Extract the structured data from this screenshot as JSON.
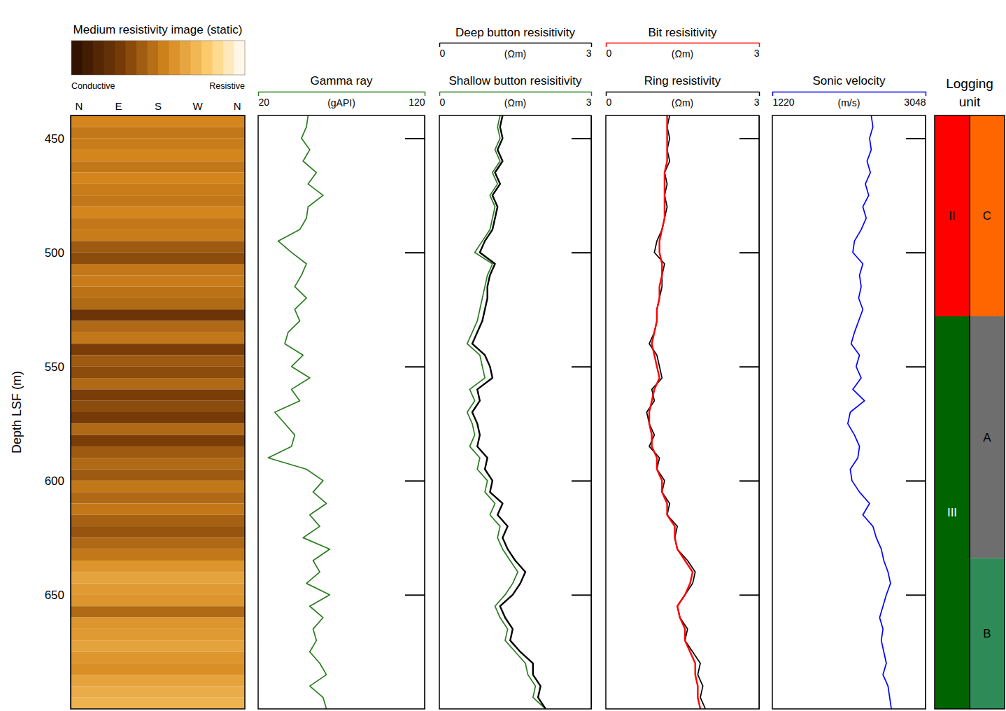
{
  "chart_data": {
    "type": "well_log",
    "ylabel": "Depth LSF (m)",
    "ylim": [
      440,
      700
    ],
    "yticks": [
      450,
      500,
      550,
      600,
      650
    ],
    "depth": [
      440,
      445,
      450,
      455,
      460,
      465,
      470,
      475,
      480,
      485,
      490,
      495,
      500,
      505,
      510,
      515,
      520,
      525,
      530,
      535,
      540,
      545,
      550,
      555,
      560,
      565,
      570,
      575,
      580,
      585,
      590,
      595,
      600,
      605,
      610,
      615,
      620,
      625,
      630,
      635,
      640,
      645,
      650,
      655,
      660,
      665,
      670,
      675,
      680,
      685,
      690,
      695,
      700
    ],
    "tracks": [
      {
        "type": "heatmap",
        "title": "Medium resistivity image (static)",
        "categories": [
          "N",
          "E",
          "S",
          "W",
          "N"
        ],
        "values": [
          0.55,
          0.5,
          0.52,
          0.55,
          0.5,
          0.55,
          0.52,
          0.5,
          0.55,
          0.5,
          0.52,
          0.4,
          0.35,
          0.5,
          0.52,
          0.48,
          0.45,
          0.25,
          0.45,
          0.5,
          0.3,
          0.4,
          0.35,
          0.45,
          0.3,
          0.35,
          0.28,
          0.45,
          0.3,
          0.4,
          0.45,
          0.4,
          0.5,
          0.45,
          0.5,
          0.42,
          0.38,
          0.45,
          0.5,
          0.6,
          0.65,
          0.62,
          0.6,
          0.45,
          0.6,
          0.62,
          0.65,
          0.6,
          0.58,
          0.65,
          0.68,
          0.7
        ],
        "colorbar_range": [
          0,
          1
        ],
        "colorbar_ticks": [
          {
            "value": 0,
            "label": "Conductive"
          },
          {
            "value": 1,
            "label": "Resistive"
          }
        ]
      },
      {
        "type": "line",
        "xlim": [
          20,
          120
        ],
        "xticks": [
          20,
          120
        ],
        "series": [
          {
            "name": "Gamma ray",
            "units": "(gAPI)",
            "color": "#2a7d1f",
            "values": [
              50,
              49,
              46,
              51,
              47,
              55,
              50,
              59,
              50,
              49,
              45,
              32,
              40,
              49,
              46,
              42,
              49,
              42,
              45,
              38,
              36,
              47,
              40,
              51,
              40,
              45,
              30,
              36,
              42,
              40,
              26,
              49,
              59,
              53,
              61,
              51,
              57,
              47,
              63,
              53,
              57,
              49,
              63,
              51,
              59,
              53,
              55,
              51,
              57,
              61,
              51,
              59,
              61
            ]
          }
        ]
      },
      {
        "type": "line",
        "xlim": [
          0,
          3
        ],
        "xticks": [
          0,
          3
        ],
        "series": [
          {
            "name": "Shallow button resisitivity",
            "units": "(Ωm)",
            "color": "#2a7d1f",
            "values": [
              1.2,
              1.15,
              1.2,
              1.1,
              1.2,
              1.05,
              1.15,
              1.0,
              1.1,
              1.05,
              1.0,
              0.85,
              0.7,
              1.05,
              0.95,
              0.9,
              0.85,
              0.8,
              0.75,
              0.65,
              0.55,
              0.8,
              0.85,
              0.9,
              0.6,
              0.7,
              0.55,
              0.65,
              0.7,
              0.6,
              0.8,
              0.75,
              0.95,
              0.9,
              1.1,
              1.0,
              1.2,
              1.15,
              1.25,
              1.4,
              1.55,
              1.45,
              1.3,
              1.1,
              1.2,
              1.35,
              1.3,
              1.5,
              1.7,
              1.75,
              1.9,
              1.85,
              2.1
            ]
          },
          {
            "name": "Deep button resisitivity",
            "units": "(Ωm)",
            "color": "#000000",
            "values": [
              1.25,
              1.2,
              1.25,
              1.15,
              1.25,
              1.1,
              1.2,
              1.05,
              1.15,
              1.1,
              1.05,
              0.9,
              0.8,
              1.1,
              1.0,
              0.95,
              0.95,
              0.9,
              0.85,
              0.75,
              0.65,
              0.9,
              1.0,
              1.05,
              0.75,
              0.8,
              0.65,
              0.75,
              0.8,
              0.75,
              0.95,
              0.9,
              1.05,
              1.0,
              1.25,
              1.15,
              1.35,
              1.25,
              1.35,
              1.5,
              1.7,
              1.6,
              1.45,
              1.2,
              1.3,
              1.45,
              1.4,
              1.6,
              1.85,
              1.85,
              2.0,
              1.95,
              2.1
            ]
          }
        ]
      },
      {
        "type": "line",
        "xlim": [
          0,
          3
        ],
        "xticks": [
          0,
          3
        ],
        "series": [
          {
            "name": "Ring resistivity",
            "units": "(Ωm)",
            "color": "#000000",
            "values": [
              1.25,
              1.2,
              1.25,
              1.2,
              1.25,
              1.15,
              1.2,
              1.15,
              1.2,
              1.15,
              1.1,
              1.0,
              0.95,
              1.15,
              1.1,
              1.1,
              1.05,
              1.0,
              1.0,
              0.95,
              0.85,
              1.0,
              1.05,
              1.1,
              0.9,
              0.95,
              0.8,
              0.85,
              0.95,
              0.85,
              1.05,
              1.0,
              1.15,
              1.1,
              1.25,
              1.2,
              1.4,
              1.35,
              1.4,
              1.6,
              1.75,
              1.7,
              1.55,
              1.4,
              1.45,
              1.6,
              1.55,
              1.7,
              1.85,
              1.8,
              1.9,
              1.85,
              1.95
            ]
          },
          {
            "name": "Bit resisitivity",
            "units": "(Ωm)",
            "color": "#ff0000",
            "values": [
              1.2,
              1.2,
              1.2,
              1.2,
              1.2,
              1.15,
              1.15,
              1.15,
              1.15,
              1.15,
              1.1,
              1.05,
              1.05,
              1.1,
              1.1,
              1.05,
              1.05,
              1.0,
              1.0,
              0.95,
              0.9,
              0.95,
              1.0,
              1.05,
              0.95,
              0.9,
              0.85,
              0.85,
              0.9,
              0.9,
              1.0,
              1.0,
              1.1,
              1.1,
              1.2,
              1.2,
              1.35,
              1.35,
              1.4,
              1.55,
              1.7,
              1.65,
              1.55,
              1.4,
              1.45,
              1.55,
              1.55,
              1.65,
              1.75,
              1.75,
              1.8,
              1.8,
              1.85
            ]
          }
        ]
      },
      {
        "type": "line",
        "xlim": [
          1220,
          3048
        ],
        "xticks": [
          1220,
          3048
        ],
        "series": [
          {
            "name": "Sonic velocity",
            "units": "(m/s)",
            "color": "#0000ff",
            "values": [
              2400,
              2420,
              2380,
              2400,
              2350,
              2390,
              2330,
              2370,
              2300,
              2340,
              2280,
              2200,
              2180,
              2300,
              2260,
              2280,
              2250,
              2300,
              2250,
              2200,
              2160,
              2260,
              2220,
              2280,
              2180,
              2320,
              2150,
              2120,
              2200,
              2260,
              2240,
              2150,
              2170,
              2260,
              2380,
              2300,
              2420,
              2460,
              2520,
              2550,
              2600,
              2630,
              2580,
              2540,
              2500,
              2540,
              2520,
              2550,
              2580,
              2540,
              2600,
              2620,
              2640
            ]
          }
        ]
      },
      {
        "type": "units",
        "title": "Logging unit",
        "columns": [
          [
            {
              "label": "II",
              "top": 440,
              "base": 528,
              "color": "#ff0000"
            },
            {
              "label": "III",
              "top": 528,
              "base": 700,
              "color": "#006400"
            }
          ],
          [
            {
              "label": "C",
              "top": 440,
              "base": 528,
              "color": "#ff6600"
            },
            {
              "label": "A",
              "top": 528,
              "base": 634,
              "color": "#6e6e6e"
            },
            {
              "label": "B",
              "top": 634,
              "base": 700,
              "color": "#2e8b57"
            }
          ]
        ]
      }
    ]
  }
}
